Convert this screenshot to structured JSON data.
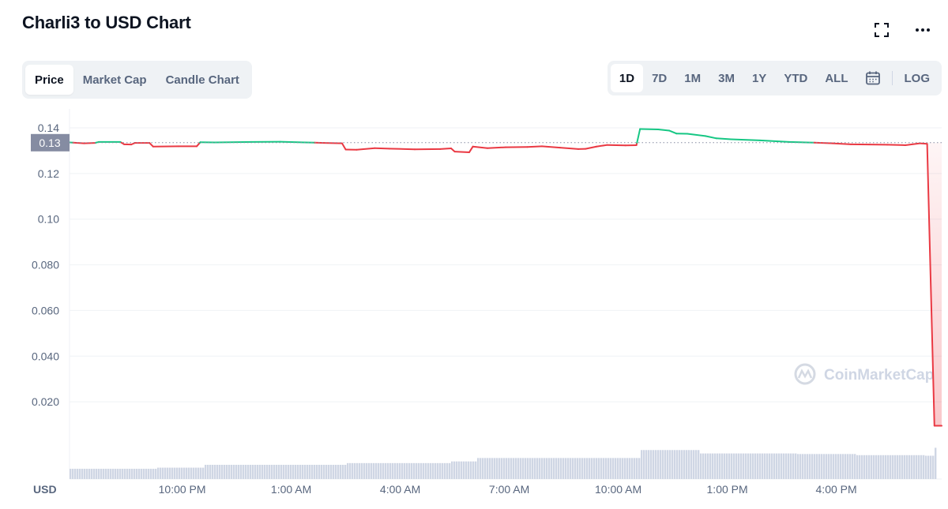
{
  "header": {
    "title": "Charli3 to USD Chart",
    "fullscreen_icon": "fullscreen-icon",
    "more_icon": "more-options-icon"
  },
  "tabs": [
    {
      "label": "Price",
      "active": true
    },
    {
      "label": "Market Cap",
      "active": false
    },
    {
      "label": "Candle Chart",
      "active": false
    }
  ],
  "ranges": [
    {
      "label": "1D",
      "active": true
    },
    {
      "label": "7D",
      "active": false
    },
    {
      "label": "1M",
      "active": false
    },
    {
      "label": "3M",
      "active": false
    },
    {
      "label": "1Y",
      "active": false
    },
    {
      "label": "YTD",
      "active": false
    },
    {
      "label": "ALL",
      "active": false
    }
  ],
  "calendar_icon": "calendar-icon",
  "log_label": "LOG",
  "watermark": "CoinMarketCap",
  "colors": {
    "up": "#16c784",
    "down": "#ea3943",
    "grid": "#eff2f5",
    "axis_text": "#58667e",
    "current_badge": "#858ca2",
    "volume": "#cfd6e4"
  },
  "chart_data": {
    "type": "line",
    "currency_label": "USD",
    "reference_price": 0.1335,
    "current_price_label": "0.13",
    "yticks": [
      "0.020",
      "0.040",
      "0.060",
      "0.080",
      "0.10",
      "0.12",
      "0.14"
    ],
    "ytick_values": [
      0.02,
      0.04,
      0.06,
      0.08,
      0.1,
      0.12,
      0.14
    ],
    "ylim": [
      0.0,
      0.14
    ],
    "x_range_hours": [
      0,
      24
    ],
    "xticks": [
      {
        "label": "10:00 PM",
        "t": 3.1
      },
      {
        "label": "1:00 AM",
        "t": 6.1
      },
      {
        "label": "4:00 AM",
        "t": 9.1
      },
      {
        "label": "7:00 AM",
        "t": 12.1
      },
      {
        "label": "10:00 AM",
        "t": 15.1
      },
      {
        "label": "1:00 PM",
        "t": 18.1
      },
      {
        "label": "4:00 PM",
        "t": 21.1
      }
    ],
    "series": [
      {
        "points": [
          [
            0.0,
            0.1336
          ],
          [
            0.4,
            0.1332
          ],
          [
            0.7,
            0.1334
          ],
          [
            0.8,
            0.1338
          ],
          [
            1.4,
            0.1338
          ],
          [
            1.5,
            0.1328
          ],
          [
            1.7,
            0.1327
          ],
          [
            1.8,
            0.1334
          ],
          [
            2.2,
            0.1334
          ],
          [
            2.3,
            0.1318
          ],
          [
            3.0,
            0.1319
          ],
          [
            3.5,
            0.1319
          ],
          [
            3.6,
            0.1337
          ],
          [
            4.0,
            0.1336
          ],
          [
            5.0,
            0.1338
          ],
          [
            5.8,
            0.1339
          ],
          [
            6.5,
            0.1336
          ],
          [
            7.0,
            0.1334
          ],
          [
            7.5,
            0.1332
          ],
          [
            7.6,
            0.1305
          ],
          [
            7.9,
            0.1304
          ],
          [
            8.4,
            0.1311
          ],
          [
            8.8,
            0.1309
          ],
          [
            9.5,
            0.1306
          ],
          [
            10.2,
            0.1307
          ],
          [
            10.5,
            0.131
          ],
          [
            10.6,
            0.1296
          ],
          [
            11.0,
            0.1293
          ],
          [
            11.1,
            0.1318
          ],
          [
            11.5,
            0.1311
          ],
          [
            12.0,
            0.1315
          ],
          [
            12.6,
            0.1316
          ],
          [
            13.0,
            0.1319
          ],
          [
            13.5,
            0.1313
          ],
          [
            14.0,
            0.1307
          ],
          [
            14.2,
            0.1308
          ],
          [
            14.5,
            0.1318
          ],
          [
            14.8,
            0.1325
          ],
          [
            15.3,
            0.1323
          ],
          [
            15.6,
            0.1324
          ],
          [
            15.7,
            0.1395
          ],
          [
            16.2,
            0.1393
          ],
          [
            16.5,
            0.1388
          ],
          [
            16.7,
            0.1375
          ],
          [
            17.0,
            0.1374
          ],
          [
            17.5,
            0.1364
          ],
          [
            17.8,
            0.1354
          ],
          [
            18.2,
            0.135
          ],
          [
            19.0,
            0.1345
          ],
          [
            19.8,
            0.1338
          ],
          [
            20.5,
            0.1335
          ],
          [
            21.0,
            0.1332
          ],
          [
            21.5,
            0.1328
          ],
          [
            22.0,
            0.1327
          ],
          [
            22.5,
            0.1326
          ],
          [
            23.0,
            0.1324
          ],
          [
            23.4,
            0.1332
          ],
          [
            23.6,
            0.133
          ],
          [
            23.8,
            0.0095
          ],
          [
            24.0,
            0.0095
          ]
        ]
      }
    ],
    "volume": [
      [
        0,
        0.18
      ],
      [
        2.4,
        0.2
      ],
      [
        3.7,
        0.25
      ],
      [
        7.6,
        0.28
      ],
      [
        10.5,
        0.31
      ],
      [
        11.2,
        0.37
      ],
      [
        15.7,
        0.51
      ],
      [
        17.3,
        0.45
      ],
      [
        20.0,
        0.44
      ],
      [
        21.6,
        0.42
      ],
      [
        23.5,
        0.41
      ],
      [
        23.8,
        0.55
      ]
    ]
  }
}
